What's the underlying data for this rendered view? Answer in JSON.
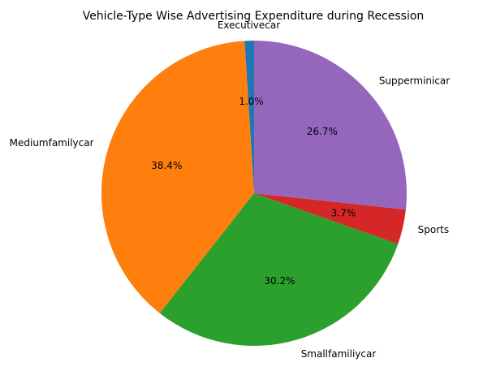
{
  "chart_data": {
    "type": "pie",
    "title": "Vehicle-Type Wise Advertising Expenditure during Recession",
    "slices": [
      {
        "label": "Executivecar",
        "value": 1.0,
        "pct_label": "1.0%",
        "color": "#1f77b4"
      },
      {
        "label": "Mediumfamilycar",
        "value": 38.4,
        "pct_label": "38.4%",
        "color": "#ff7f0e"
      },
      {
        "label": "Smallfamiliycar",
        "value": 30.2,
        "pct_label": "30.2%",
        "color": "#2ca02c"
      },
      {
        "label": "Sports",
        "value": 3.7,
        "pct_label": "3.7%",
        "color": "#d62728"
      },
      {
        "label": "Supperminicar",
        "value": 26.7,
        "pct_label": "26.7%",
        "color": "#9467bd"
      }
    ],
    "start_angle_deg": 90,
    "direction": "counterclockwise",
    "legend": "none"
  }
}
